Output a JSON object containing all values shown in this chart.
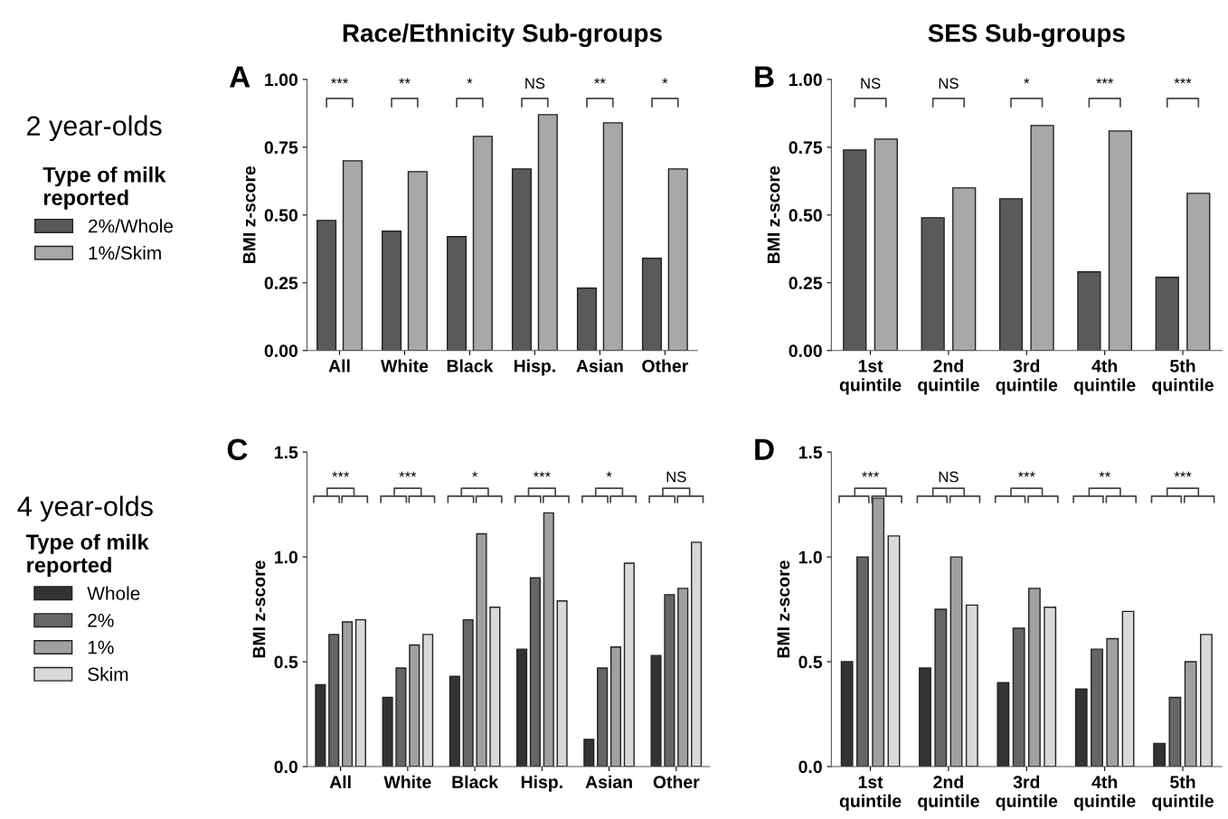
{
  "chart_data": [
    {
      "type": "bar",
      "title": "Race/Ethnicity Sub-groups",
      "ylabel": "BMI z-score",
      "legend_title": "Type of milk\nreported",
      "legend": "left",
      "grid": false,
      "categories": [
        "All",
        "White",
        "Black",
        "Hisp.",
        "Asian",
        "Other"
      ],
      "series": [
        {
          "name": "2%/Whole",
          "color": "#5a5a5a",
          "values": [
            0.48,
            0.44,
            0.42,
            0.67,
            0.23,
            0.34
          ]
        },
        {
          "name": "1%/Skim",
          "color": "#a8a8a8",
          "values": [
            0.7,
            0.66,
            0.79,
            0.87,
            0.84,
            0.67
          ]
        }
      ],
      "ylim": [
        0,
        1
      ],
      "yticks": [
        {
          "value": 0,
          "label": "0.00"
        },
        {
          "value": 0.25,
          "label": "0.25"
        },
        {
          "value": 0.5,
          "label": "0.50"
        },
        {
          "value": 0.75,
          "label": "0.75"
        },
        {
          "value": 1,
          "label": "1.00"
        }
      ],
      "annotations": [
        "A",
        "2 year-olds",
        "***",
        "**",
        "*",
        "NS",
        "**",
        "*"
      ]
    },
    {
      "type": "bar",
      "title": "SES Sub-groups",
      "ylabel": "BMI z-score",
      "grid": false,
      "categories": [
        "1st\nquintile",
        "2nd\nquintile",
        "3rd\nquintile",
        "4th\nquintile",
        "5th\nquintile"
      ],
      "series": [
        {
          "color": "#5a5a5a",
          "values": [
            0.74,
            0.49,
            0.56,
            0.29,
            0.27
          ]
        },
        {
          "color": "#a8a8a8",
          "values": [
            0.78,
            0.6,
            0.83,
            0.81,
            0.58
          ]
        }
      ],
      "ylim": [
        0,
        1
      ],
      "yticks": [
        {
          "value": 0,
          "label": "0.00"
        },
        {
          "value": 0.25,
          "label": "0.25"
        },
        {
          "value": 0.5,
          "label": "0.50"
        },
        {
          "value": 0.75,
          "label": "0.75"
        },
        {
          "value": 1,
          "label": "1.00"
        }
      ],
      "annotations": [
        "B",
        "NS",
        "NS",
        "*",
        "***",
        "***"
      ]
    },
    {
      "type": "bar",
      "ylabel": "BMI z-score",
      "legend_title": "Type of milk\nreported",
      "legend": "left",
      "grid": false,
      "categories": [
        "All",
        "White",
        "Black",
        "Hisp.",
        "Asian",
        "Other"
      ],
      "series": [
        {
          "name": "Whole",
          "color": "#333333",
          "values": [
            0.39,
            0.33,
            0.43,
            0.56,
            0.13,
            0.53
          ]
        },
        {
          "name": "2%",
          "color": "#666666",
          "values": [
            0.63,
            0.47,
            0.7,
            0.9,
            0.47,
            0.82
          ]
        },
        {
          "name": "1%",
          "color": "#a0a0a0",
          "values": [
            0.69,
            0.58,
            1.11,
            1.21,
            0.57,
            0.85
          ]
        },
        {
          "name": "Skim",
          "color": "#d9d9d9",
          "values": [
            0.7,
            0.63,
            0.76,
            0.79,
            0.97,
            1.07
          ]
        }
      ],
      "ylim": [
        0,
        1.5
      ],
      "yticks": [
        {
          "value": 0,
          "label": "0.0"
        },
        {
          "value": 0.5,
          "label": "0.5"
        },
        {
          "value": 1,
          "label": "1.0"
        },
        {
          "value": 1.5,
          "label": "1.5"
        }
      ],
      "annotations": [
        "C",
        "4 year-olds",
        "***",
        "***",
        "*",
        "***",
        "*",
        "NS"
      ]
    },
    {
      "type": "bar",
      "ylabel": "BMI z-score",
      "grid": false,
      "categories": [
        "1st\nquintile",
        "2nd\nquintile",
        "3rd\nquintile",
        "4th\nquintile",
        "5th\nquintile"
      ],
      "series": [
        {
          "color": "#333333",
          "values": [
            0.5,
            0.47,
            0.4,
            0.37,
            0.11
          ]
        },
        {
          "color": "#666666",
          "values": [
            1.0,
            0.75,
            0.66,
            0.56,
            0.33
          ]
        },
        {
          "color": "#a0a0a0",
          "values": [
            1.28,
            1.0,
            0.85,
            0.61,
            0.5
          ]
        },
        {
          "color": "#d9d9d9",
          "values": [
            1.1,
            0.77,
            0.76,
            0.74,
            0.63
          ]
        }
      ],
      "ylim": [
        0,
        1.5
      ],
      "yticks": [
        {
          "value": 0,
          "label": "0.0"
        },
        {
          "value": 0.5,
          "label": "0.5"
        },
        {
          "value": 1,
          "label": "1.0"
        },
        {
          "value": 1.5,
          "label": "1.5"
        }
      ],
      "annotations": [
        "D",
        "***",
        "NS",
        "***",
        "**",
        "***"
      ]
    }
  ]
}
